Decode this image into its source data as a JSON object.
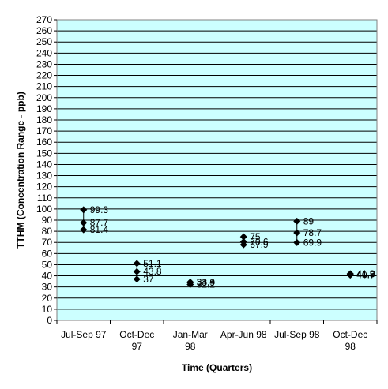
{
  "chart_data": {
    "type": "scatter",
    "title": "",
    "xlabel": "Time (Quarters)",
    "ylabel": "TTHM (Concentration Range - ppb)",
    "ylim": [
      0,
      270
    ],
    "ytick_step": 10,
    "grid": true,
    "legend": "none",
    "plot_background": "#ccffff",
    "marker_color": "#000000",
    "categories": [
      [
        "Jul-Sep 97"
      ],
      [
        "Oct-Dec",
        "97"
      ],
      [
        "Jan-Mar",
        "98"
      ],
      [
        "Apr-Jun 98"
      ],
      [
        "Jul-Sep 98"
      ],
      [
        "Oct-Dec",
        "98"
      ]
    ],
    "points": [
      {
        "category": 0,
        "values": [
          99.3,
          87.7,
          81.4
        ],
        "labels": [
          "99.3",
          "87.7",
          "81.4"
        ]
      },
      {
        "category": 1,
        "values": [
          51.1,
          43.8,
          37
        ],
        "labels": [
          "51.1",
          "43.8",
          "37"
        ]
      },
      {
        "category": 2,
        "values": [
          34.4,
          33.9,
          32.2
        ],
        "labels": [
          "34.4",
          "33.9",
          "32.2"
        ]
      },
      {
        "category": 3,
        "values": [
          75,
          70.6,
          67.9
        ],
        "labels": [
          "75",
          "70.6",
          "67.9"
        ]
      },
      {
        "category": 4,
        "values": [
          89,
          78.7,
          69.9
        ],
        "labels": [
          "89",
          "78.7",
          "69.9"
        ]
      },
      {
        "category": 5,
        "values": [
          41.9,
          41.5,
          40.7
        ],
        "labels": [
          "41.9",
          "41.5",
          "40.7"
        ]
      }
    ]
  }
}
